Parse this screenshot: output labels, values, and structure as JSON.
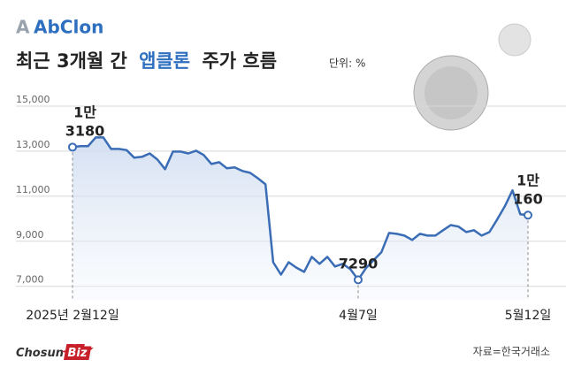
{
  "header": {
    "logo": "AbClon",
    "source": "자료=한국거래소",
    "brand": [
      "Chosun",
      "Biz"
    ]
  },
  "chart_data": {
    "type": "line",
    "title": [
      "최근 3개월 간",
      "앱클론",
      "주가 흐름"
    ],
    "unit": "단위: %",
    "categories": [
      "2025년 2월12일",
      null,
      null,
      null,
      null,
      null,
      null,
      null,
      null,
      null,
      null,
      null,
      null,
      null,
      null,
      null,
      null,
      null,
      null,
      null,
      null,
      null,
      null,
      null,
      null,
      null,
      null,
      null,
      null,
      null,
      null,
      null,
      null,
      null,
      null,
      null,
      null,
      "4월7일",
      null,
      null,
      null,
      null,
      null,
      null,
      null,
      null,
      null,
      null,
      null,
      null,
      null,
      null,
      null,
      null,
      null,
      null,
      null,
      null,
      null,
      "5월12일"
    ],
    "series": [
      {
        "name": "앱클론",
        "color": "#3a6db5",
        "values": [
          13180,
          13220,
          13220,
          13610,
          13610,
          13100,
          13100,
          13050,
          12710,
          12750,
          12900,
          12630,
          12200,
          12980,
          12980,
          12900,
          13020,
          12830,
          12430,
          12510,
          12240,
          12280,
          12120,
          12040,
          11800,
          11530,
          8070,
          7520,
          8070,
          7830,
          7640,
          8310,
          8000,
          8310,
          7880,
          8000,
          7760,
          7290,
          7800,
          8160,
          8510,
          9370,
          9330,
          9250,
          9060,
          9330,
          9250,
          9250,
          9490,
          9720,
          9650,
          9410,
          9490,
          9250,
          9410,
          9960,
          10550,
          11260,
          10200,
          10160
        ],
        "value_labels": [
          "1만 3180",
          null,
          null,
          null,
          null,
          null,
          null,
          null,
          null,
          null,
          null,
          null,
          null,
          null,
          null,
          null,
          null,
          null,
          null,
          null,
          null,
          null,
          null,
          null,
          null,
          null,
          null,
          null,
          null,
          null,
          null,
          null,
          null,
          null,
          null,
          null,
          null,
          "7290",
          null,
          null,
          null,
          null,
          null,
          null,
          null,
          null,
          null,
          null,
          null,
          null,
          null,
          null,
          null,
          null,
          null,
          null,
          null,
          null,
          null,
          "1만 160"
        ]
      }
    ],
    "ylim": [
      6400,
      15000
    ],
    "yticks": [
      {
        "value": 7000,
        "label": "7,000"
      },
      {
        "value": 9000,
        "label": "9,000"
      },
      {
        "value": 11000,
        "label": "11,000"
      },
      {
        "value": 13000,
        "label": "13,000"
      },
      {
        "value": 15000,
        "label": "15,000"
      }
    ],
    "grid": true
  }
}
